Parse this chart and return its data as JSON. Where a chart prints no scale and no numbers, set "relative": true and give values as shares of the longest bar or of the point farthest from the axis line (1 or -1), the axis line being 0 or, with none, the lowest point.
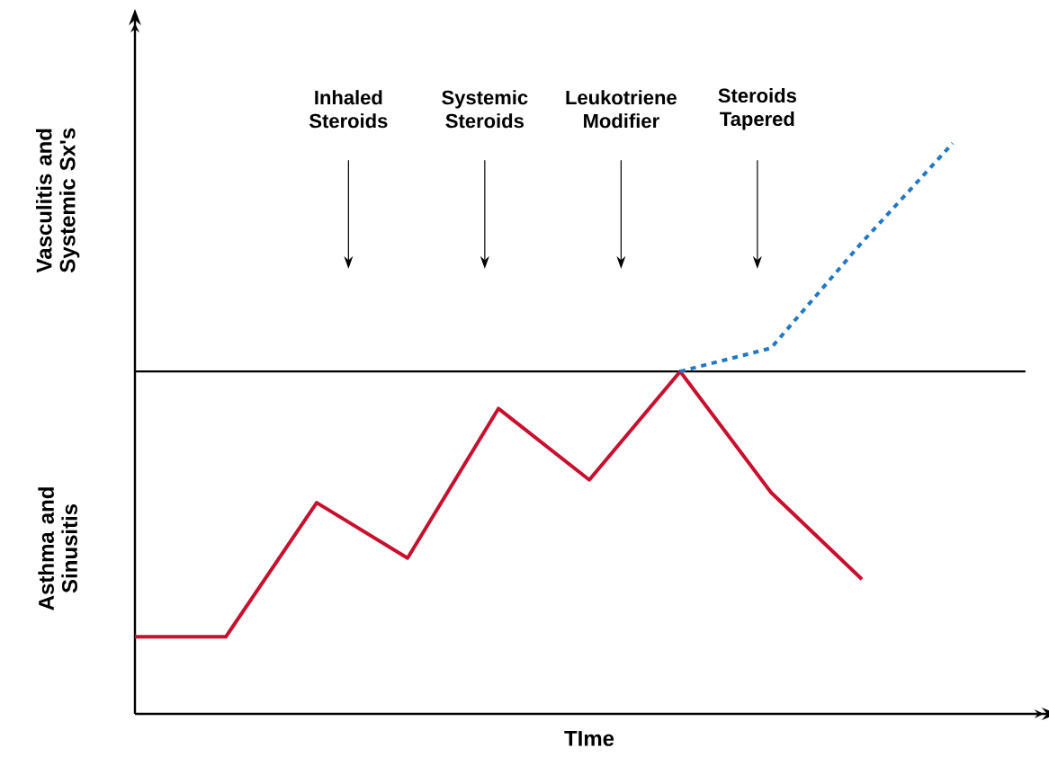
{
  "chart_data": {
    "type": "line",
    "relative": true,
    "xlabel": "TIme",
    "ylabel": "Asthma and Sinusitis",
    "categories": [
      null,
      null,
      null,
      null,
      null,
      null,
      null,
      null,
      null,
      null
    ],
    "series": [
      {
        "color": "#c8102e",
        "line_style": "solid",
        "values": [
          0.135,
          0.135,
          0.37,
          0.273,
          0.535,
          0.41,
          0.6,
          0.388,
          0.236,
          null
        ]
      },
      {
        "color": "#1f78c8",
        "line_style": "dotted",
        "values": [
          null,
          null,
          null,
          null,
          null,
          null,
          0.6,
          0.641,
          0.826,
          1
        ]
      }
    ],
    "ref_lines": [
      {
        "axis": "y",
        "value": 0.6,
        "color": "#000000"
      }
    ],
    "annotations": [
      "Vasculitis and Systemic Sx's",
      "Inhaled Steroids",
      "Systemic Steroids",
      "Leukotriene Modifier",
      "Steroids Tapered"
    ],
    "marker": "none"
  }
}
